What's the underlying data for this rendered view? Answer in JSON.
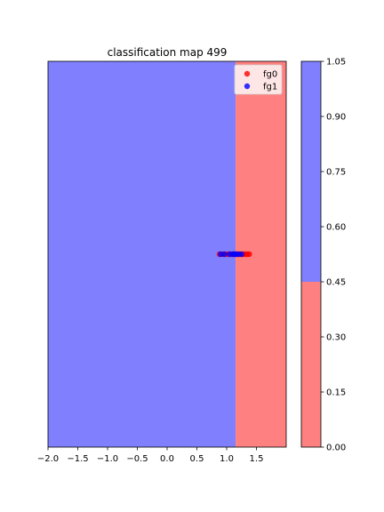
{
  "chart_data": [
    {
      "type": "scatter",
      "title": "classification map 499",
      "xlabel": "",
      "ylabel": "",
      "xlim": [
        -2.0,
        2.0
      ],
      "ylim": [
        -3.25,
        3.25
      ],
      "x_ticks": [
        -2.0,
        -1.5,
        -1.0,
        -0.5,
        0.0,
        0.5,
        1.0,
        1.5
      ],
      "x_tick_labels": [
        "−2.0",
        "−1.5",
        "−1.0",
        "−0.5",
        "0.0",
        "0.5",
        "1.0",
        "1.5"
      ],
      "grid": false,
      "y_axis_ticks_shown": false,
      "decision_regions": [
        {
          "x_range": [
            -2.0,
            1.15
          ],
          "class_value": 1.0,
          "color": "#8080ff"
        },
        {
          "x_range": [
            1.15,
            2.0
          ],
          "class_value": 0.0,
          "color": "#ff8080"
        }
      ],
      "series": [
        {
          "name": "fg0",
          "color": "#ff0000",
          "points": [
            [
              0.88,
              0.0
            ],
            [
              0.93,
              0.0
            ],
            [
              0.98,
              0.0
            ],
            [
              1.02,
              0.0
            ],
            [
              1.06,
              0.0
            ],
            [
              1.1,
              0.0
            ],
            [
              1.14,
              0.0
            ],
            [
              1.18,
              0.0
            ],
            [
              1.22,
              0.0
            ],
            [
              1.26,
              0.0
            ],
            [
              1.29,
              0.0
            ],
            [
              1.32,
              0.0
            ],
            [
              1.35,
              0.0
            ],
            [
              1.38,
              0.0
            ]
          ]
        },
        {
          "name": "fg1",
          "color": "#0000ff",
          "points": [
            [
              0.9,
              0.0
            ],
            [
              0.96,
              0.0
            ],
            [
              1.05,
              0.0
            ],
            [
              1.1,
              0.0
            ],
            [
              1.13,
              0.0
            ],
            [
              1.16,
              0.0
            ],
            [
              1.2,
              0.0
            ],
            [
              1.25,
              0.0
            ]
          ]
        }
      ],
      "legend": {
        "placement": "upper-right",
        "entries": [
          "fg0",
          "fg1"
        ]
      }
    },
    {
      "type": "colorbar",
      "vmin": 0.0,
      "vmax": 1.05,
      "ticks": [
        0.0,
        0.15,
        0.3,
        0.45,
        0.6,
        0.75,
        0.9,
        1.05
      ],
      "tick_labels": [
        "0.00",
        "0.15",
        "0.30",
        "0.45",
        "0.60",
        "0.75",
        "0.90",
        "1.05"
      ],
      "levels": [
        {
          "range": [
            0.0,
            0.45
          ],
          "color": "#ff8080"
        },
        {
          "range": [
            0.45,
            1.05
          ],
          "color": "#8080ff"
        }
      ]
    }
  ]
}
